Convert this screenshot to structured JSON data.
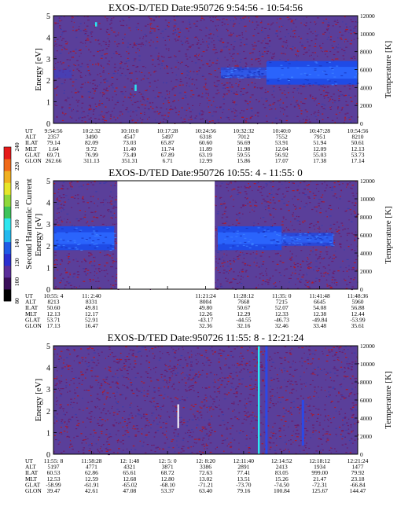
{
  "colorbar": {
    "title": "Second Harmonic Current",
    "ticks": [
      "80",
      "100",
      "120",
      "140",
      "160",
      "180",
      "200",
      "220",
      "240"
    ]
  },
  "colors": {
    "background": "#5a3f9a",
    "speckle_dark": "#6a1d6b",
    "speckle_red": "#b0192a",
    "band": "#1f4be6",
    "band_bright": "#2d68ff",
    "cyan": "#2ee6ef",
    "white": "#ffffff"
  },
  "chart_data": [
    {
      "type": "heatmap",
      "title": "EXOS-D/TED   Date:950726  9:54:56 - 10:54:56",
      "ylabel": "Energy [eV]",
      "ylabel_right": "Temperature [K]",
      "ylim": [
        0,
        5
      ],
      "yticks": [
        "0",
        "1",
        "2",
        "3",
        "4",
        "5"
      ],
      "ylim_right": [
        0,
        12000
      ],
      "yticks_right": [
        "0",
        "2000",
        "4000",
        "6000",
        "8000",
        "10000",
        "12000"
      ],
      "ephemeris_labels": [
        "UT",
        "ALT",
        "ILAT",
        "MLT",
        "GLAT",
        "GLON"
      ],
      "ephemeris": [
        [
          "9:54:56",
          "2357",
          "79.14",
          "1.64",
          "69.71",
          "262.66"
        ],
        [
          "10:2:32",
          "3490",
          "82.09",
          "9.72",
          "76.99",
          "311.13"
        ],
        [
          "10:10:0",
          "4547",
          "73.03",
          "11.40",
          "73.49",
          "351.31"
        ],
        [
          "10:17:28",
          "5497",
          "65.87",
          "11.74",
          "67.89",
          "6.71"
        ],
        [
          "10:24:56",
          "6318",
          "60.60",
          "11.89",
          "63.19",
          "12.99"
        ],
        [
          "10:32:32",
          "7012",
          "56.69",
          "11.98",
          "59.55",
          "15.86"
        ],
        [
          "10:40:0",
          "7552",
          "53.91",
          "12.04",
          "56.92",
          "17.07"
        ],
        [
          "10:47:28",
          "7951",
          "51.94",
          "12.09",
          "55.03",
          "17.38"
        ],
        [
          "10:54:56",
          "8210",
          "50.61",
          "12.13",
          "53.73",
          "17.14"
        ]
      ],
      "band": [
        {
          "t0": 0.0,
          "t1": 0.06,
          "e_low": 2.1,
          "e_high": 2.5,
          "level": 0.0
        },
        {
          "t0": 0.55,
          "t1": 0.7,
          "e_low": 2.1,
          "e_high": 2.6,
          "level": 0.35
        },
        {
          "t0": 0.7,
          "t1": 1.0,
          "e_low": 1.8,
          "e_high": 2.9,
          "level": 1.0
        }
      ],
      "spikes": [
        {
          "t": 0.14,
          "e_low": 4.5,
          "e_high": 4.7,
          "kind": "cyan"
        },
        {
          "t": 0.27,
          "e_low": 1.5,
          "e_high": 1.8,
          "kind": "cyan"
        }
      ],
      "gaps": []
    },
    {
      "type": "heatmap",
      "title": "EXOS-D/TED   Date:950726  10:55: 4 - 11:55: 0",
      "ylabel": "Energy [eV]",
      "ylabel_right": "Temperature [K]",
      "ylim": [
        0,
        5
      ],
      "yticks": [
        "0",
        "1",
        "2",
        "3",
        "4",
        "5"
      ],
      "ylim_right": [
        0,
        12000
      ],
      "yticks_right": [
        "0",
        "2000",
        "4000",
        "6000",
        "8000",
        "10000",
        "12000"
      ],
      "ephemeris_labels": [
        "UT",
        "ALT",
        "ILAT",
        "MLT",
        "GLAT",
        "GLON"
      ],
      "ephemeris": [
        [
          "10:55: 4",
          "8213",
          "50.60",
          "12.13",
          "53.71",
          "17.13"
        ],
        [
          "11: 2:40",
          "8331",
          "49.81",
          "12.17",
          "52.91",
          "16.47"
        ],
        [
          "",
          "",
          "",
          "",
          "",
          ""
        ],
        [
          "",
          "",
          "",
          "",
          "",
          ""
        ],
        [
          "11:21:24",
          "8004",
          "49.80",
          "12.26",
          "-43.17",
          "32.36"
        ],
        [
          "11:28:12",
          "7668",
          "50.67",
          "12.29",
          "-44.55",
          "32.16"
        ],
        [
          "11:35: 0",
          "7215",
          "52.07",
          "12.33",
          "-46.73",
          "32.46"
        ],
        [
          "11:41:48",
          "6645",
          "54.08",
          "12.38",
          "-49.84",
          "33.48"
        ],
        [
          "11:48:36",
          "5960",
          "56.88",
          "12.44",
          "-53.99",
          "35.61"
        ]
      ],
      "band": [
        {
          "t0": 0.0,
          "t1": 0.2,
          "e_low": 1.8,
          "e_high": 2.9,
          "level": 1.0
        },
        {
          "t0": 0.54,
          "t1": 0.75,
          "e_low": 1.8,
          "e_high": 2.9,
          "level": 1.0
        },
        {
          "t0": 0.75,
          "t1": 0.92,
          "e_low": 2.0,
          "e_high": 2.6,
          "level": 0.6
        }
      ],
      "spikes": [],
      "gaps": [
        {
          "t0": 0.21,
          "t1": 0.53
        }
      ]
    },
    {
      "type": "heatmap",
      "title": "EXOS-D/TED   Date:950726  11:55: 8 - 12:21:24",
      "ylabel": "Energy [eV]",
      "ylabel_right": "Temperature [K]",
      "ylim": [
        0,
        5
      ],
      "yticks": [
        "0",
        "1",
        "2",
        "3",
        "4",
        "5"
      ],
      "ylim_right": [
        0,
        12000
      ],
      "yticks_right": [
        "0",
        "2000",
        "4000",
        "6000",
        "8000",
        "10000",
        "12000"
      ],
      "ephemeris_labels": [
        "UT",
        "ALT",
        "ILAT",
        "MLT",
        "GLAT",
        "GLON"
      ],
      "ephemeris": [
        [
          "11:55: 8",
          "5197",
          "60.53",
          "12.53",
          "-58.99",
          "39.47"
        ],
        [
          "11:58:28",
          "4771",
          "62.86",
          "12.59",
          "-61.91",
          "42.61"
        ],
        [
          "12: 1:48",
          "4321",
          "65.61",
          "12.68",
          "-65.02",
          "47.08"
        ],
        [
          "12: 5: 0",
          "3871",
          "68.72",
          "12.80",
          "-68.10",
          "53.37"
        ],
        [
          "12: 8:20",
          "3386",
          "72.63",
          "13.02",
          "-71.21",
          "63.40"
        ],
        [
          "12:11:40",
          "2891",
          "77.41",
          "13.51",
          "-73.70",
          "79.16"
        ],
        [
          "12:14:52",
          "2413",
          "83.05",
          "15.26",
          "-74.50",
          "100.84"
        ],
        [
          "12:18:12",
          "1934",
          "999.00",
          "21.47",
          "-72.31",
          "125.67"
        ],
        [
          "12:21:24",
          "1477",
          "79.92",
          "23.18",
          "-66.84",
          "144.47"
        ]
      ],
      "band": [],
      "spikes": [
        {
          "t": 0.41,
          "e_low": 1.2,
          "e_high": 2.3,
          "kind": "white"
        },
        {
          "t": 0.675,
          "e_low": 0.0,
          "e_high": 5.0,
          "kind": "cyan"
        },
        {
          "t": 0.7,
          "e_low": 0.0,
          "e_high": 5.0,
          "kind": "blue"
        },
        {
          "t": 0.82,
          "e_low": 0.4,
          "e_high": 2.5,
          "kind": "blue"
        }
      ],
      "gaps": []
    }
  ]
}
